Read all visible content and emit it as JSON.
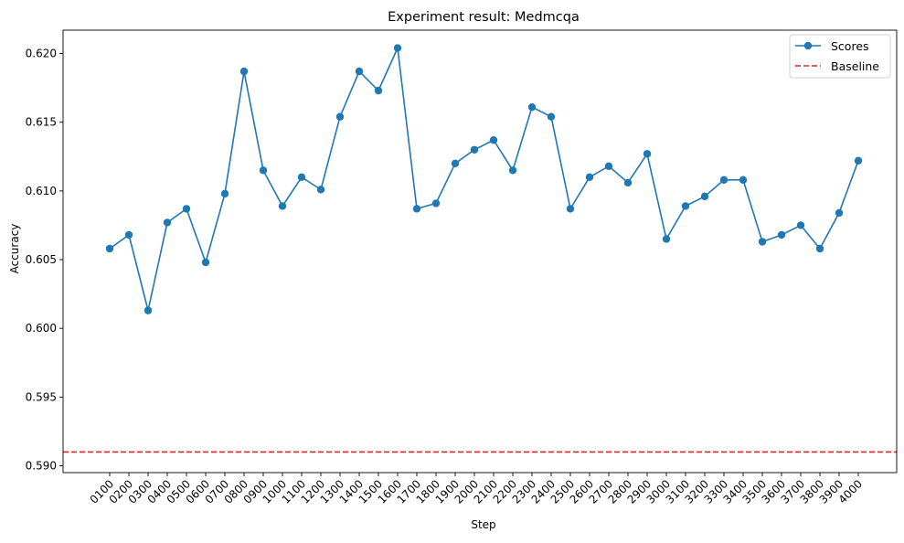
{
  "chart_data": {
    "type": "line",
    "title": "Experiment result: Medmcqa",
    "xlabel": "Step",
    "ylabel": "Accuracy",
    "categories": [
      "0100",
      "0200",
      "0300",
      "0400",
      "0500",
      "0600",
      "0700",
      "0800",
      "0900",
      "1000",
      "1100",
      "1200",
      "1300",
      "1400",
      "1500",
      "1600",
      "1700",
      "1800",
      "1900",
      "2000",
      "2100",
      "2200",
      "2300",
      "2400",
      "2500",
      "2600",
      "2700",
      "2800",
      "2900",
      "3000",
      "3100",
      "3200",
      "3300",
      "3400",
      "3500",
      "3600",
      "3700",
      "3800",
      "3900",
      "4000"
    ],
    "series": [
      {
        "name": "Scores",
        "color": "#1f77b4",
        "values": [
          0.6058,
          0.6068,
          0.6013,
          0.6077,
          0.6087,
          0.6048,
          0.6098,
          0.6187,
          0.6115,
          0.6089,
          0.611,
          0.6101,
          0.6154,
          0.6187,
          0.6173,
          0.6204,
          0.6087,
          0.6091,
          0.612,
          0.613,
          0.6137,
          0.6115,
          0.6161,
          0.6154,
          0.6087,
          0.611,
          0.6118,
          0.6106,
          0.6127,
          0.6065,
          0.6089,
          0.6096,
          0.6108,
          0.6108,
          0.6063,
          0.6068,
          0.6075,
          0.6058,
          0.6084,
          0.6122
        ]
      }
    ],
    "baseline": {
      "name": "Baseline",
      "value": 0.591,
      "color": "#d62728"
    },
    "ylim": [
      0.5895,
      0.6217
    ],
    "yticks": [
      0.59,
      0.595,
      0.6,
      0.605,
      0.61,
      0.615,
      0.62
    ],
    "ytick_labels": [
      "0.590",
      "0.595",
      "0.600",
      "0.605",
      "0.610",
      "0.615",
      "0.620"
    ],
    "grid": false,
    "legend": {
      "position": "top-right",
      "items": [
        "Scores",
        "Baseline"
      ]
    }
  }
}
